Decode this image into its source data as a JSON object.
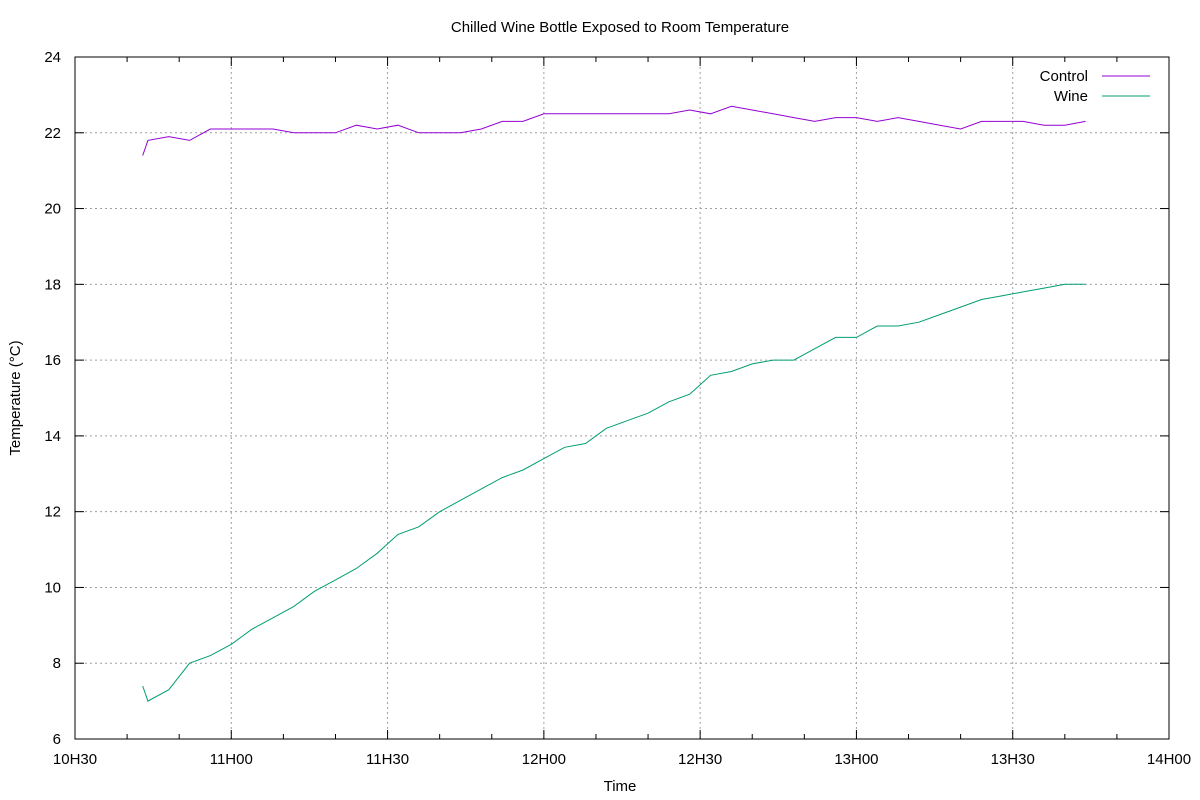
{
  "chart_data": {
    "type": "line",
    "title": "Chilled Wine Bottle Exposed to Room Temperature",
    "xlabel": "Time",
    "ylabel": "Temperature (°C)",
    "xlim": [
      "10:30",
      "14:00"
    ],
    "ylim": [
      6,
      24
    ],
    "x_ticks": [
      "10H30",
      "11H00",
      "11H30",
      "12H00",
      "12H30",
      "13H00",
      "13H30",
      "14H00"
    ],
    "y_ticks": [
      "6",
      "8",
      "10",
      "12",
      "14",
      "16",
      "18",
      "20",
      "22",
      "24"
    ],
    "grid": true,
    "legend_position": "top-right",
    "series": [
      {
        "name": "Control",
        "color": "#9400d3",
        "points": [
          [
            "10:43",
            21.4
          ],
          [
            "10:44",
            21.8
          ],
          [
            "10:48",
            21.9
          ],
          [
            "10:52",
            21.8
          ],
          [
            "10:56",
            22.1
          ],
          [
            "11:00",
            22.1
          ],
          [
            "11:04",
            22.1
          ],
          [
            "11:08",
            22.1
          ],
          [
            "11:12",
            22.0
          ],
          [
            "11:16",
            22.0
          ],
          [
            "11:20",
            22.0
          ],
          [
            "11:24",
            22.2
          ],
          [
            "11:28",
            22.1
          ],
          [
            "11:32",
            22.2
          ],
          [
            "11:36",
            22.0
          ],
          [
            "11:40",
            22.0
          ],
          [
            "11:44",
            22.0
          ],
          [
            "11:48",
            22.1
          ],
          [
            "11:52",
            22.3
          ],
          [
            "11:56",
            22.3
          ],
          [
            "12:00",
            22.5
          ],
          [
            "12:04",
            22.5
          ],
          [
            "12:08",
            22.5
          ],
          [
            "12:12",
            22.5
          ],
          [
            "12:16",
            22.5
          ],
          [
            "12:20",
            22.5
          ],
          [
            "12:24",
            22.5
          ],
          [
            "12:28",
            22.6
          ],
          [
            "12:32",
            22.5
          ],
          [
            "12:36",
            22.7
          ],
          [
            "12:40",
            22.6
          ],
          [
            "12:44",
            22.5
          ],
          [
            "12:48",
            22.4
          ],
          [
            "12:52",
            22.3
          ],
          [
            "12:56",
            22.4
          ],
          [
            "13:00",
            22.4
          ],
          [
            "13:04",
            22.3
          ],
          [
            "13:08",
            22.4
          ],
          [
            "13:12",
            22.3
          ],
          [
            "13:16",
            22.2
          ],
          [
            "13:20",
            22.1
          ],
          [
            "13:24",
            22.3
          ],
          [
            "13:28",
            22.3
          ],
          [
            "13:32",
            22.3
          ],
          [
            "13:36",
            22.2
          ],
          [
            "13:40",
            22.2
          ],
          [
            "13:44",
            22.3
          ]
        ]
      },
      {
        "name": "Wine",
        "color": "#009e73",
        "points": [
          [
            "10:43",
            7.4
          ],
          [
            "10:44",
            7.0
          ],
          [
            "10:48",
            7.3
          ],
          [
            "10:52",
            8.0
          ],
          [
            "10:56",
            8.2
          ],
          [
            "11:00",
            8.5
          ],
          [
            "11:04",
            8.9
          ],
          [
            "11:08",
            9.2
          ],
          [
            "11:12",
            9.5
          ],
          [
            "11:16",
            9.9
          ],
          [
            "11:20",
            10.2
          ],
          [
            "11:24",
            10.5
          ],
          [
            "11:28",
            10.9
          ],
          [
            "11:32",
            11.4
          ],
          [
            "11:36",
            11.6
          ],
          [
            "11:40",
            12.0
          ],
          [
            "11:44",
            12.3
          ],
          [
            "11:48",
            12.6
          ],
          [
            "11:52",
            12.9
          ],
          [
            "11:56",
            13.1
          ],
          [
            "12:00",
            13.4
          ],
          [
            "12:04",
            13.7
          ],
          [
            "12:08",
            13.8
          ],
          [
            "12:12",
            14.2
          ],
          [
            "12:16",
            14.4
          ],
          [
            "12:20",
            14.6
          ],
          [
            "12:24",
            14.9
          ],
          [
            "12:28",
            15.1
          ],
          [
            "12:32",
            15.6
          ],
          [
            "12:36",
            15.7
          ],
          [
            "12:40",
            15.9
          ],
          [
            "12:44",
            16.0
          ],
          [
            "12:48",
            16.0
          ],
          [
            "12:52",
            16.3
          ],
          [
            "12:56",
            16.6
          ],
          [
            "13:00",
            16.6
          ],
          [
            "13:04",
            16.9
          ],
          [
            "13:08",
            16.9
          ],
          [
            "13:12",
            17.0
          ],
          [
            "13:16",
            17.2
          ],
          [
            "13:20",
            17.4
          ],
          [
            "13:24",
            17.6
          ],
          [
            "13:28",
            17.7
          ],
          [
            "13:32",
            17.8
          ],
          [
            "13:36",
            17.9
          ],
          [
            "13:40",
            18.0
          ],
          [
            "13:44",
            18.0
          ]
        ]
      }
    ]
  }
}
